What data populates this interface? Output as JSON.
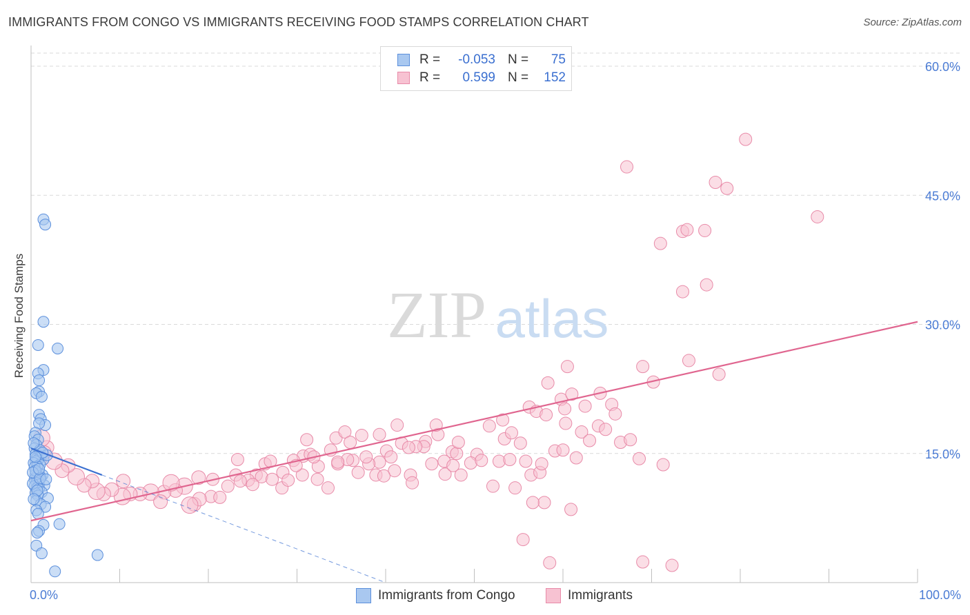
{
  "title": "IMMIGRANTS FROM CONGO VS IMMIGRANTS RECEIVING FOOD STAMPS CORRELATION CHART",
  "source": "Source: ZipAtlas.com",
  "watermark": {
    "zip": "ZIP",
    "atlas": "atlas"
  },
  "colors": {
    "blue_fill": "#a9c8f0",
    "blue_stroke": "#5b8fdc",
    "blue_line": "#3a6fd0",
    "pink_fill": "#f7c2d2",
    "pink_stroke": "#e88aa8",
    "pink_line": "#e0658f",
    "axis_text": "#4a7bd4",
    "grid": "#d9d9d9"
  },
  "legend": {
    "rows": [
      {
        "r_label": "R =",
        "r_value": "-0.053",
        "n_label": "N =",
        "n_value": "75"
      },
      {
        "r_label": "R =",
        "r_value": "0.599",
        "n_label": "N =",
        "n_value": "152"
      }
    ],
    "series": [
      "Immigrants from Congo",
      "Immigrants"
    ]
  },
  "chart_data": {
    "type": "scatter",
    "title": "IMMIGRANTS FROM CONGO VS IMMIGRANTS RECEIVING FOOD STAMPS CORRELATION CHART",
    "xlabel": "",
    "ylabel": "Receiving Food Stamps",
    "xlim": [
      0,
      100
    ],
    "ylim": [
      0,
      60
    ],
    "x_tick_labels": [
      "0.0%",
      "100.0%"
    ],
    "y_ticks": [
      15,
      30,
      45,
      60
    ],
    "y_tick_labels": [
      "15.0%",
      "30.0%",
      "45.0%",
      "60.0%"
    ],
    "grid": true,
    "legend_position": "top-center",
    "series": [
      {
        "name": "Immigrants from Congo",
        "r": -0.053,
        "n": 75,
        "trend": {
          "x": [
            0,
            8
          ],
          "y": [
            15.6,
            12.5
          ]
        },
        "trend_extension": {
          "x": [
            8,
            40
          ],
          "y": [
            12.5,
            0
          ]
        },
        "points": [
          [
            1.4,
            42.2
          ],
          [
            1.6,
            41.6
          ],
          [
            1.4,
            30.3
          ],
          [
            0.8,
            27.6
          ],
          [
            3.0,
            27.2
          ],
          [
            1.4,
            24.7
          ],
          [
            0.8,
            24.3
          ],
          [
            0.9,
            23.5
          ],
          [
            0.9,
            22.2
          ],
          [
            0.6,
            22.0
          ],
          [
            1.2,
            21.6
          ],
          [
            0.9,
            19.5
          ],
          [
            1.1,
            19.0
          ],
          [
            1.6,
            18.3
          ],
          [
            0.9,
            18.5
          ],
          [
            0.5,
            17.4
          ],
          [
            0.4,
            17.0
          ],
          [
            0.8,
            16.6
          ],
          [
            0.6,
            16.0
          ],
          [
            0.4,
            15.6
          ],
          [
            0.9,
            15.2
          ],
          [
            0.5,
            14.9
          ],
          [
            1.1,
            14.7
          ],
          [
            0.6,
            14.4
          ],
          [
            1.4,
            14.3
          ],
          [
            0.8,
            14.3
          ],
          [
            0.5,
            14.1
          ],
          [
            0.3,
            13.9
          ],
          [
            1.0,
            13.7
          ],
          [
            0.7,
            13.5
          ],
          [
            0.4,
            13.4
          ],
          [
            0.6,
            12.9
          ],
          [
            0.9,
            12.7
          ],
          [
            1.3,
            12.5
          ],
          [
            0.5,
            12.5
          ],
          [
            0.7,
            12.4
          ],
          [
            1.1,
            12.2
          ],
          [
            0.4,
            12.0
          ],
          [
            0.8,
            11.8
          ],
          [
            0.6,
            11.6
          ],
          [
            0.9,
            11.4
          ],
          [
            1.5,
            11.3
          ],
          [
            0.4,
            11.2
          ],
          [
            0.7,
            11.0
          ],
          [
            0.9,
            10.9
          ],
          [
            1.2,
            10.5
          ],
          [
            0.5,
            10.4
          ],
          [
            0.8,
            10.1
          ],
          [
            1.9,
            9.8
          ],
          [
            0.6,
            9.5
          ],
          [
            1.1,
            9.1
          ],
          [
            1.6,
            8.8
          ],
          [
            0.6,
            8.4
          ],
          [
            0.8,
            8.0
          ],
          [
            3.2,
            6.8
          ],
          [
            1.4,
            6.7
          ],
          [
            0.9,
            6.0
          ],
          [
            0.7,
            5.8
          ],
          [
            0.6,
            4.3
          ],
          [
            1.2,
            3.4
          ],
          [
            7.5,
            3.2
          ],
          [
            2.7,
            1.3
          ],
          [
            1.0,
            15.4
          ],
          [
            0.3,
            16.2
          ],
          [
            1.8,
            14.8
          ],
          [
            0.5,
            13.0
          ],
          [
            0.2,
            11.5
          ],
          [
            1.3,
            15.1
          ],
          [
            0.7,
            10.7
          ],
          [
            0.2,
            12.8
          ],
          [
            0.5,
            14.6
          ],
          [
            1.0,
            12.1
          ],
          [
            0.3,
            9.7
          ],
          [
            0.9,
            13.2
          ],
          [
            1.7,
            12.0
          ]
        ]
      },
      {
        "name": "Immigrants",
        "r": 0.599,
        "n": 152,
        "trend": {
          "x": [
            0,
            100
          ],
          "y": [
            7.2,
            30.3
          ]
        },
        "points": [
          [
            80.6,
            51.5
          ],
          [
            67.2,
            48.3
          ],
          [
            77.2,
            46.5
          ],
          [
            78.5,
            45.8
          ],
          [
            88.7,
            42.5
          ],
          [
            73.5,
            40.8
          ],
          [
            74.0,
            41.0
          ],
          [
            76.0,
            40.9
          ],
          [
            71.0,
            39.4
          ],
          [
            76.2,
            34.6
          ],
          [
            73.5,
            33.8
          ],
          [
            74.2,
            25.8
          ],
          [
            60.5,
            25.1
          ],
          [
            69.0,
            25.1
          ],
          [
            77.6,
            24.2
          ],
          [
            58.3,
            23.2
          ],
          [
            70.2,
            23.3
          ],
          [
            64.2,
            22.0
          ],
          [
            65.5,
            20.7
          ],
          [
            59.8,
            21.3
          ],
          [
            56.2,
            20.4
          ],
          [
            62.5,
            20.5
          ],
          [
            57.0,
            19.9
          ],
          [
            60.2,
            20.2
          ],
          [
            58.1,
            19.5
          ],
          [
            53.2,
            18.9
          ],
          [
            51.7,
            18.2
          ],
          [
            64.0,
            18.2
          ],
          [
            53.4,
            16.7
          ],
          [
            71.3,
            13.7
          ],
          [
            66.5,
            16.3
          ],
          [
            61.5,
            14.5
          ],
          [
            45.2,
            13.8
          ],
          [
            46.6,
            14.1
          ],
          [
            55.2,
            16.2
          ],
          [
            50.3,
            14.9
          ],
          [
            52.8,
            14.1
          ],
          [
            46.7,
            12.6
          ],
          [
            49.6,
            13.9
          ],
          [
            47.6,
            13.6
          ],
          [
            54.6,
            11.0
          ],
          [
            47.5,
            15.2
          ],
          [
            48.0,
            15.0
          ],
          [
            44.5,
            16.4
          ],
          [
            40.1,
            15.3
          ],
          [
            40.6,
            14.6
          ],
          [
            44.3,
            15.8
          ],
          [
            38.9,
            12.5
          ],
          [
            43.4,
            15.8
          ],
          [
            39.3,
            14.0
          ],
          [
            34.6,
            13.8
          ],
          [
            36.3,
            14.2
          ],
          [
            30.7,
            14.7
          ],
          [
            26.4,
            13.8
          ],
          [
            34.4,
            16.8
          ],
          [
            35.4,
            17.5
          ],
          [
            36.0,
            16.3
          ],
          [
            31.1,
            16.6
          ],
          [
            31.5,
            14.9
          ],
          [
            32.4,
            13.5
          ],
          [
            37.3,
            17.1
          ],
          [
            41.8,
            16.2
          ],
          [
            42.6,
            15.7
          ],
          [
            42.8,
            12.5
          ],
          [
            43.0,
            11.6
          ],
          [
            41.0,
            13.0
          ],
          [
            39.8,
            12.4
          ],
          [
            38.1,
            13.8
          ],
          [
            36.9,
            12.8
          ],
          [
            35.7,
            14.3
          ],
          [
            34.6,
            14.0
          ],
          [
            33.8,
            15.4
          ],
          [
            32.3,
            12.0
          ],
          [
            30.6,
            12.5
          ],
          [
            29.6,
            14.2
          ],
          [
            28.4,
            12.8
          ],
          [
            27.0,
            14.1
          ],
          [
            25.4,
            12.5
          ],
          [
            24.5,
            11.9
          ],
          [
            23.1,
            12.5
          ],
          [
            22.2,
            11.2
          ],
          [
            20.5,
            12.0
          ],
          [
            20.3,
            10.0
          ],
          [
            18.9,
            12.2
          ],
          [
            17.3,
            11.2
          ],
          [
            16.3,
            10.7
          ],
          [
            15.0,
            10.5
          ],
          [
            13.5,
            10.5
          ],
          [
            12.3,
            10.3
          ],
          [
            11.2,
            10.3
          ],
          [
            10.3,
            10.0
          ],
          [
            9.1,
            10.8
          ],
          [
            8.2,
            10.3
          ],
          [
            7.4,
            10.6
          ],
          [
            6.9,
            11.8
          ],
          [
            6.0,
            11.3
          ],
          [
            5.1,
            12.3
          ],
          [
            4.2,
            13.6
          ],
          [
            3.5,
            13.0
          ],
          [
            2.6,
            14.1
          ],
          [
            1.8,
            15.7
          ],
          [
            1.5,
            15.1
          ],
          [
            1.2,
            16.8
          ],
          [
            10.4,
            11.8
          ],
          [
            14.6,
            9.4
          ],
          [
            15.8,
            11.6
          ],
          [
            18.4,
            9.1
          ],
          [
            19.0,
            9.7
          ],
          [
            17.9,
            9.0
          ],
          [
            21.3,
            9.9
          ],
          [
            23.6,
            11.8
          ],
          [
            26.0,
            12.3
          ],
          [
            28.3,
            11.0
          ],
          [
            29.9,
            13.6
          ],
          [
            23.3,
            14.3
          ],
          [
            25.0,
            11.4
          ],
          [
            27.2,
            12.0
          ],
          [
            29.0,
            11.9
          ],
          [
            31.9,
            14.6
          ],
          [
            33.5,
            11.0
          ],
          [
            37.8,
            14.6
          ],
          [
            39.3,
            17.2
          ],
          [
            41.3,
            18.3
          ],
          [
            45.9,
            17.2
          ],
          [
            48.5,
            12.5
          ],
          [
            45.7,
            18.3
          ],
          [
            48.2,
            16.3
          ],
          [
            50.8,
            14.2
          ],
          [
            52.1,
            11.2
          ],
          [
            54.2,
            17.4
          ],
          [
            56.4,
            12.5
          ],
          [
            57.4,
            12.8
          ],
          [
            55.8,
            14.1
          ],
          [
            57.6,
            13.8
          ],
          [
            60.3,
            18.5
          ],
          [
            62.1,
            17.5
          ],
          [
            63.0,
            16.5
          ],
          [
            57.9,
            9.3
          ],
          [
            56.6,
            9.3
          ],
          [
            54.0,
            14.3
          ],
          [
            55.5,
            5.0
          ],
          [
            58.5,
            2.3
          ],
          [
            60.9,
            8.5
          ],
          [
            69.0,
            2.4
          ],
          [
            72.3,
            2.0
          ],
          [
            68.6,
            14.4
          ],
          [
            65.9,
            19.6
          ],
          [
            64.8,
            17.8
          ],
          [
            61.0,
            21.9
          ],
          [
            67.6,
            16.6
          ],
          [
            59.1,
            15.3
          ],
          [
            60.0,
            15.4
          ]
        ]
      }
    ]
  }
}
